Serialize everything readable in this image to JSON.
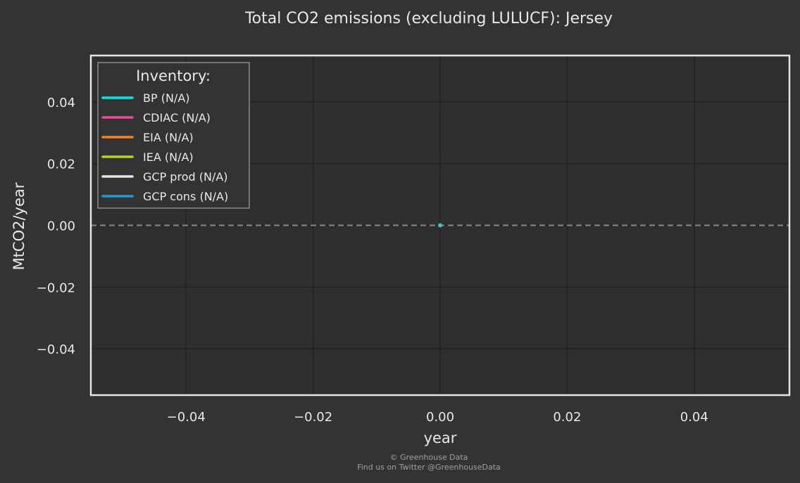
{
  "chart_data": {
    "type": "line",
    "title": "Total CO2 emissions (excluding LULUCF): Jersey",
    "xlabel": "year",
    "ylabel": "MtCO2/year",
    "xlim": [
      -0.055,
      0.055
    ],
    "ylim": [
      -0.055,
      0.055
    ],
    "xticks": [
      -0.04,
      -0.02,
      0.0,
      0.02,
      0.04
    ],
    "yticks": [
      -0.04,
      -0.02,
      0.0,
      0.02,
      0.04
    ],
    "xtick_labels": [
      "−0.04",
      "−0.02",
      "0.00",
      "0.02",
      "0.04"
    ],
    "ytick_labels": [
      "−0.04",
      "−0.02",
      "0.00",
      "0.02",
      "0.04"
    ],
    "grid": true,
    "zero_line": {
      "y": 0,
      "style": "dashed",
      "color": "#888888"
    },
    "legend": {
      "title": "Inventory:",
      "placement": "top-left"
    },
    "series": [
      {
        "name": "BP (N/A)",
        "color": "#00e5e5",
        "x": [],
        "y": []
      },
      {
        "name": "CDIAC (N/A)",
        "color": "#f0489a",
        "x": [],
        "y": []
      },
      {
        "name": "EIA (N/A)",
        "color": "#f5831f",
        "x": [],
        "y": []
      },
      {
        "name": "IEA (N/A)",
        "color": "#b7d51b",
        "x": [],
        "y": []
      },
      {
        "name": "GCP prod (N/A)",
        "color": "#e6e6e6",
        "x": [],
        "y": []
      },
      {
        "name": "GCP cons (N/A)",
        "color": "#1f9ad6",
        "x": [],
        "y": []
      }
    ],
    "annotations": [
      {
        "x": 0.0,
        "y": 0.0,
        "color": "#5ab4c8"
      }
    ]
  },
  "footer": {
    "line1": "© Greenhouse Data",
    "line2": "Find us on Twitter @GreenhouseData"
  }
}
